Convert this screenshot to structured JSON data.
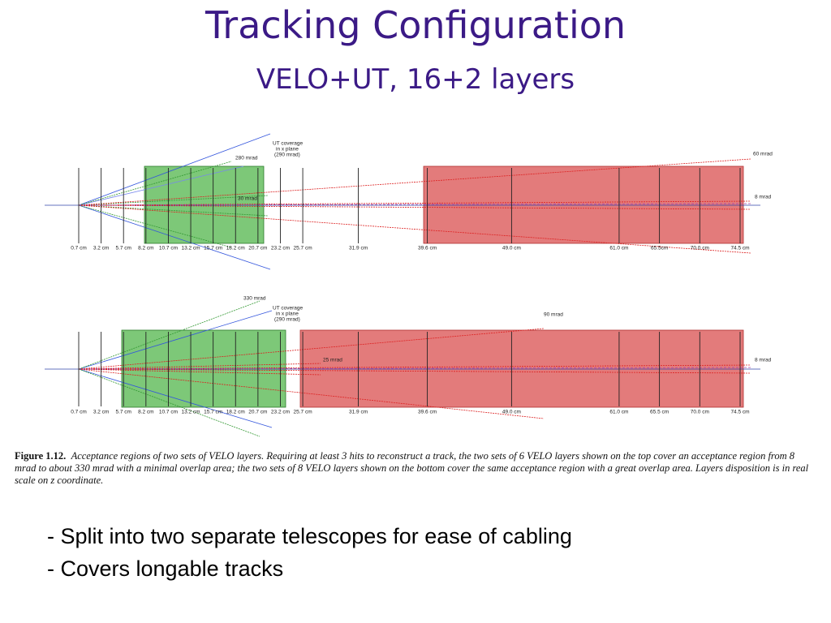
{
  "title": "Tracking Configuration",
  "subtitle": "VELO+UT, 16+2 layers",
  "figures": [
    {
      "layers": [
        {
          "value": 0.7,
          "label": "0.7 cm"
        },
        {
          "value": 3.2,
          "label": "3.2 cm"
        },
        {
          "value": 5.7,
          "label": "5.7 cm"
        },
        {
          "value": 8.2,
          "label": "8.2 cm"
        },
        {
          "value": 10.7,
          "label": "10.7 cm"
        },
        {
          "value": 13.2,
          "label": "13.2 cm"
        },
        {
          "value": 15.7,
          "label": "15.7 cm"
        },
        {
          "value": 18.2,
          "label": "18.2 cm"
        },
        {
          "value": 20.7,
          "label": "20.7 cm"
        },
        {
          "value": 23.2,
          "label": "23.2 cm"
        },
        {
          "value": 25.7,
          "label": "25.7 cm"
        },
        {
          "value": 31.9,
          "label": "31.9 cm"
        },
        {
          "value": 39.6,
          "label": "39.6 cm"
        },
        {
          "value": 49.0,
          "label": "49.0 cm"
        },
        {
          "value": 61.0,
          "label": "61.0 cm"
        },
        {
          "value": 65.5,
          "label": "65.5cm"
        },
        {
          "value": 70.0,
          "label": "70.0 cm"
        },
        {
          "value": 74.5,
          "label": "74.5 cm"
        }
      ],
      "annotations": [
        "UT coverage",
        "in x plane",
        "(290 mrad)",
        "280 mrad",
        "30 mrad",
        "60 mrad",
        "8 mrad"
      ]
    },
    {
      "layers": [
        {
          "value": 0.7,
          "label": "0.7 cm"
        },
        {
          "value": 3.2,
          "label": "3.2 cm"
        },
        {
          "value": 5.7,
          "label": "5.7 cm"
        },
        {
          "value": 8.2,
          "label": "8.2 cm"
        },
        {
          "value": 10.7,
          "label": "10.7 cm"
        },
        {
          "value": 13.2,
          "label": "13.2 cm"
        },
        {
          "value": 15.7,
          "label": "15.7 cm"
        },
        {
          "value": 18.2,
          "label": "18.2 cm"
        },
        {
          "value": 20.7,
          "label": "20.7 cm"
        },
        {
          "value": 23.2,
          "label": "23.2 cm"
        },
        {
          "value": 25.7,
          "label": "25.7 cm"
        },
        {
          "value": 31.9,
          "label": "31.9 cm"
        },
        {
          "value": 39.6,
          "label": "39.6 cm"
        },
        {
          "value": 49.0,
          "label": "49.0 cm"
        },
        {
          "value": 61.0,
          "label": "61.0 cm"
        },
        {
          "value": 65.5,
          "label": "65.5 cm"
        },
        {
          "value": 70.0,
          "label": "70.0 cm"
        },
        {
          "value": 74.5,
          "label": "74.5 cm"
        }
      ],
      "annotations": [
        "330 mrad",
        "UT coverage",
        "in x plane",
        "(290 mrad)",
        "90 mrad",
        "25 mrad",
        "8 mrad"
      ]
    }
  ],
  "caption": {
    "label": "Figure 1.12.",
    "text": "Acceptance regions of two sets of VELO layers.  Requiring at least 3 hits to reconstruct a track, the two sets of 6 VELO layers shown on the top cover an acceptance region from 8 mrad to about 330 mrad with a minimal overlap area; the two sets of 8 VELO layers shown on the bottom cover the same acceptance region with a great overlap area. Layers disposition is in real scale on z coordinate."
  },
  "bullets": [
    "- Split into two separate telescopes for ease of cabling",
    "- Covers longable tracks"
  ]
}
